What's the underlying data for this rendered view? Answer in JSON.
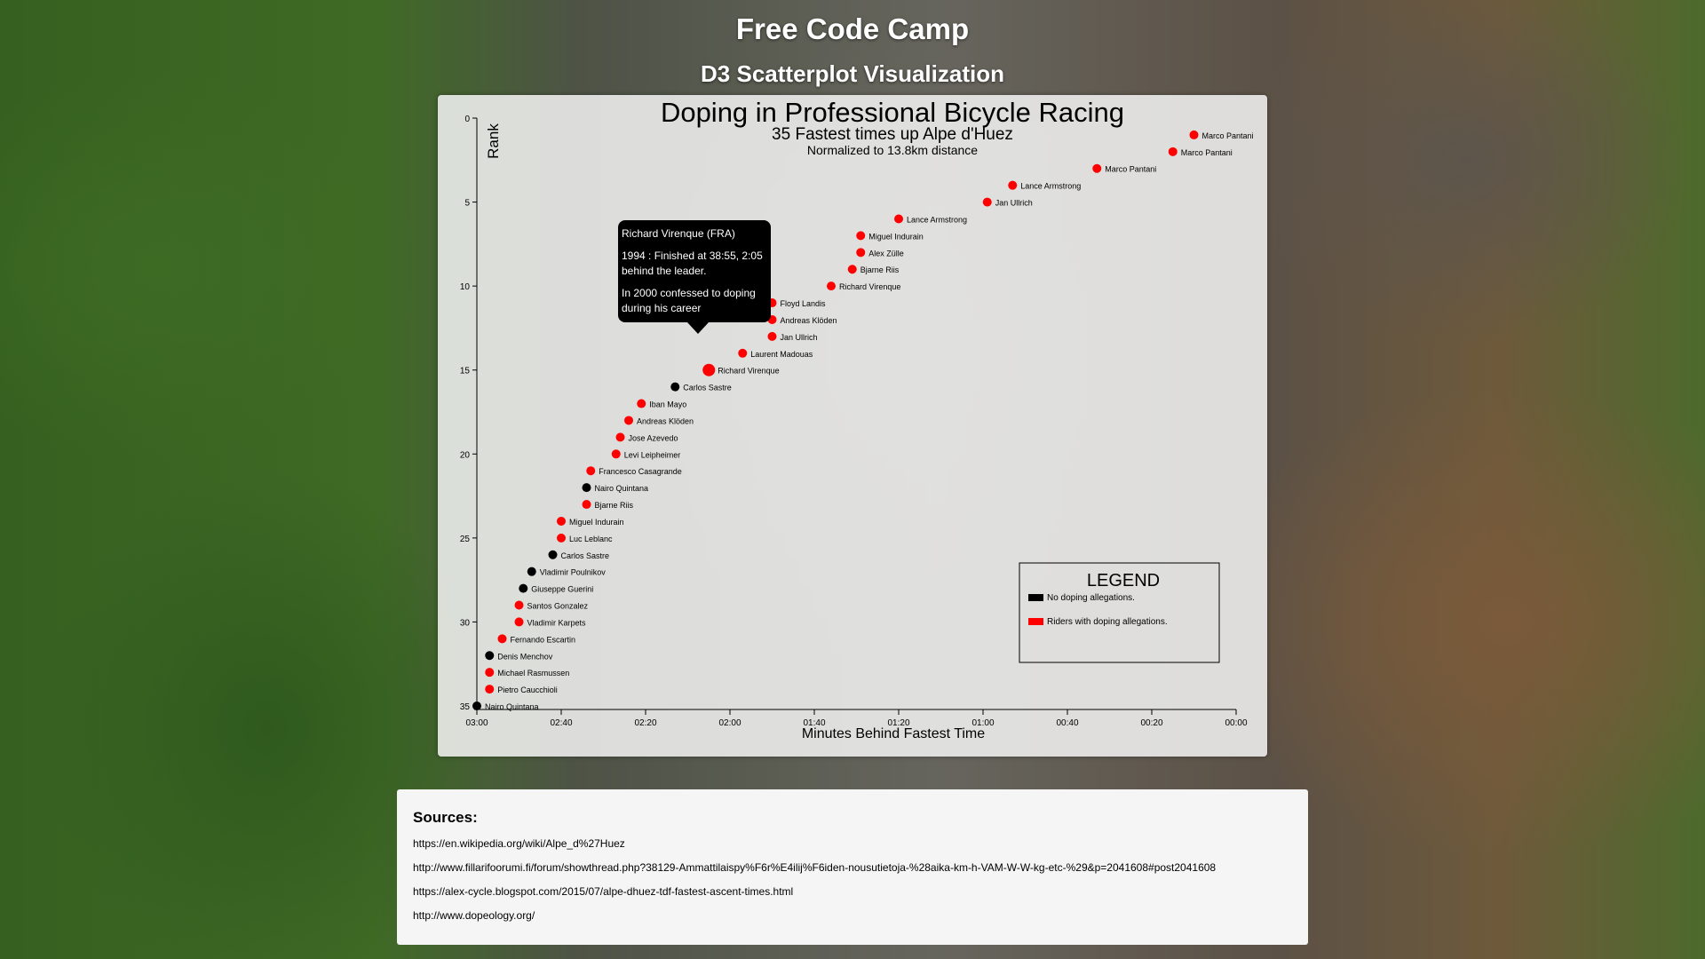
{
  "header": {
    "title": "Free Code Camp",
    "subtitle": "D3 Scatterplot Visualization"
  },
  "colors": {
    "doping": "#ff0000",
    "clean": "#000000",
    "panel": "#f0f0f0"
  },
  "chart_data": {
    "type": "scatter",
    "title": "Doping in Professional Bicycle Racing",
    "subtitle": "35 Fastest times up Alpe d'Huez",
    "note": "Normalized to 13.8km distance",
    "xlabel": "Minutes Behind Fastest Time",
    "ylabel": "Rank",
    "x_unit": "seconds behind fastest time",
    "xlim": [
      180,
      0
    ],
    "ylim": [
      0,
      35
    ],
    "x_ticks": [
      {
        "value": 180,
        "label": "03:00"
      },
      {
        "value": 160,
        "label": "02:40"
      },
      {
        "value": 140,
        "label": "02:20"
      },
      {
        "value": 120,
        "label": "02:00"
      },
      {
        "value": 100,
        "label": "01:40"
      },
      {
        "value": 80,
        "label": "01:20"
      },
      {
        "value": 60,
        "label": "01:00"
      },
      {
        "value": 40,
        "label": "00:40"
      },
      {
        "value": 20,
        "label": "00:20"
      },
      {
        "value": 0,
        "label": "00:00"
      }
    ],
    "y_ticks": [
      0,
      5,
      10,
      15,
      20,
      25,
      30,
      35
    ],
    "points": [
      {
        "rank": 1,
        "seconds": 10,
        "name": "Marco Pantani",
        "doping": true
      },
      {
        "rank": 2,
        "seconds": 15,
        "name": "Marco Pantani",
        "doping": true
      },
      {
        "rank": 3,
        "seconds": 33,
        "name": "Marco Pantani",
        "doping": true
      },
      {
        "rank": 4,
        "seconds": 53,
        "name": "Lance Armstrong",
        "doping": true
      },
      {
        "rank": 5,
        "seconds": 59,
        "name": "Jan Ullrich",
        "doping": true
      },
      {
        "rank": 6,
        "seconds": 80,
        "name": "Lance Armstrong",
        "doping": true
      },
      {
        "rank": 7,
        "seconds": 89,
        "name": "Miguel Indurain",
        "doping": true
      },
      {
        "rank": 8,
        "seconds": 89,
        "name": "Alex Zülle",
        "doping": true
      },
      {
        "rank": 9,
        "seconds": 91,
        "name": "Bjarne Riis",
        "doping": true
      },
      {
        "rank": 10,
        "seconds": 96,
        "name": "Richard Virenque",
        "doping": true
      },
      {
        "rank": 11,
        "seconds": 110,
        "name": "Floyd Landis",
        "doping": true
      },
      {
        "rank": 12,
        "seconds": 110,
        "name": "Andreas Klöden",
        "doping": true
      },
      {
        "rank": 13,
        "seconds": 110,
        "name": "Jan Ullrich",
        "doping": true
      },
      {
        "rank": 14,
        "seconds": 117,
        "name": "Laurent Madouas",
        "doping": true
      },
      {
        "rank": 15,
        "seconds": 125,
        "name": "Richard Virenque",
        "doping": true
      },
      {
        "rank": 16,
        "seconds": 133,
        "name": "Carlos Sastre",
        "doping": false
      },
      {
        "rank": 17,
        "seconds": 141,
        "name": "Iban Mayo",
        "doping": true
      },
      {
        "rank": 18,
        "seconds": 144,
        "name": "Andreas Klöden",
        "doping": true
      },
      {
        "rank": 19,
        "seconds": 146,
        "name": "Jose Azevedo",
        "doping": true
      },
      {
        "rank": 20,
        "seconds": 147,
        "name": "Levi Leipheimer",
        "doping": true
      },
      {
        "rank": 21,
        "seconds": 153,
        "name": "Francesco Casagrande",
        "doping": true
      },
      {
        "rank": 22,
        "seconds": 154,
        "name": "Nairo Quintana",
        "doping": false
      },
      {
        "rank": 23,
        "seconds": 154,
        "name": "Bjarne Riis",
        "doping": true
      },
      {
        "rank": 24,
        "seconds": 160,
        "name": "Miguel Indurain",
        "doping": true
      },
      {
        "rank": 25,
        "seconds": 160,
        "name": "Luc Leblanc",
        "doping": true
      },
      {
        "rank": 26,
        "seconds": 162,
        "name": "Carlos Sastre",
        "doping": false
      },
      {
        "rank": 27,
        "seconds": 167,
        "name": "Vladimir Poulnikov",
        "doping": false
      },
      {
        "rank": 28,
        "seconds": 169,
        "name": "Giuseppe Guerini",
        "doping": false
      },
      {
        "rank": 29,
        "seconds": 170,
        "name": "Santos Gonzalez",
        "doping": true
      },
      {
        "rank": 30,
        "seconds": 170,
        "name": "Vladimir Karpets",
        "doping": true
      },
      {
        "rank": 31,
        "seconds": 174,
        "name": "Fernando Escartin",
        "doping": true
      },
      {
        "rank": 32,
        "seconds": 177,
        "name": "Denis Menchov",
        "doping": false
      },
      {
        "rank": 33,
        "seconds": 177,
        "name": "Michael Rasmussen",
        "doping": true
      },
      {
        "rank": 34,
        "seconds": 177,
        "name": "Pietro Caucchioli",
        "doping": true
      },
      {
        "rank": 35,
        "seconds": 180,
        "name": "Nairo Quintana",
        "doping": false
      }
    ],
    "highlighted_rank": 15,
    "tooltip": {
      "name": "Richard Virenque (FRA)",
      "detail": "1994 : Finished at 38:55, 2:05 behind the leader.",
      "allegation": "In 2000 confessed to doping during his career"
    },
    "legend": {
      "title": "LEGEND",
      "placement": "bottom-right",
      "items": [
        {
          "label": "No doping allegations.",
          "color": "#000000"
        },
        {
          "label": "Riders with doping allegations.",
          "color": "#ff0000"
        }
      ]
    }
  },
  "sources": {
    "title": "Sources:",
    "links": [
      "https://en.wikipedia.org/wiki/Alpe_d%27Huez",
      "http://www.fillarifoorumi.fi/forum/showthread.php?38129-Ammattilaispy%F6r%E4ilij%F6iden-nousutietoja-%28aika-km-h-VAM-W-W-kg-etc-%29&p=2041608#post2041608",
      "https://alex-cycle.blogspot.com/2015/07/alpe-dhuez-tdf-fastest-ascent-times.html",
      "http://www.dopeology.org/"
    ]
  }
}
